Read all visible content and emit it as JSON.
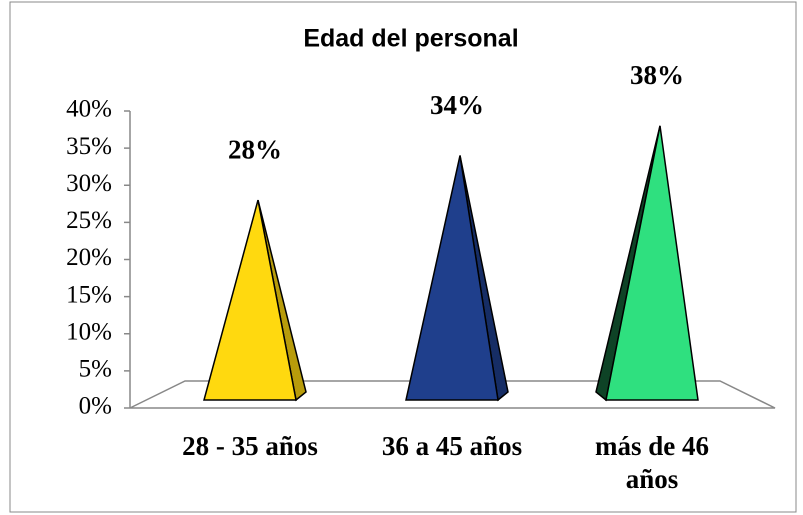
{
  "chart_data": {
    "type": "pyramid",
    "title": "Edad del personal",
    "categories": [
      "28 - 35 años",
      "36 a 45 años",
      "más de 46 años"
    ],
    "values": [
      28,
      34,
      38
    ],
    "value_labels": [
      "28%",
      "34%",
      "38%"
    ],
    "colors": [
      "#ffd90f",
      "#1f3f8c",
      "#2fe07f"
    ],
    "ylim": [
      0,
      40
    ],
    "yticks": [
      {
        "value": 0,
        "label": "0%"
      },
      {
        "value": 5,
        "label": "5%"
      },
      {
        "value": 10,
        "label": "10%"
      },
      {
        "value": 15,
        "label": "15%"
      },
      {
        "value": 20,
        "label": "20%"
      },
      {
        "value": 25,
        "label": "25%"
      },
      {
        "value": 30,
        "label": "30%"
      },
      {
        "value": 35,
        "label": "35%"
      },
      {
        "value": 40,
        "label": "40%"
      }
    ]
  }
}
